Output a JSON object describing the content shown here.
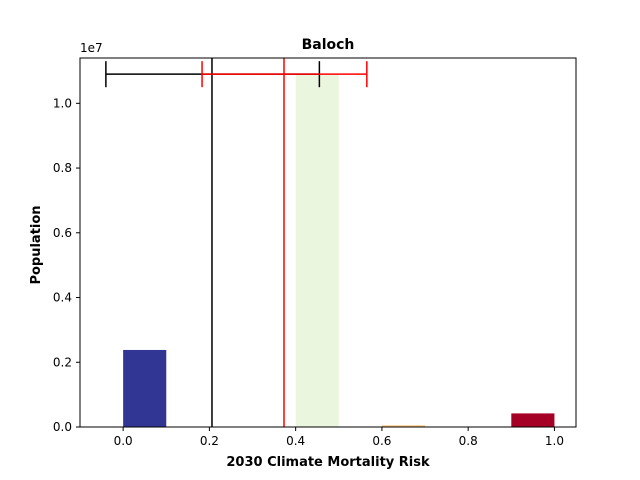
{
  "chart_data": {
    "type": "bar",
    "title": "Baloch",
    "xlabel": "2030 Climate Mortality Risk",
    "ylabel": "Population",
    "offset_text": "1e7",
    "xlim": [
      -0.1,
      1.05
    ],
    "ylim": [
      0,
      1.14
    ],
    "xticks": [
      0.0,
      0.2,
      0.4,
      0.6,
      0.8,
      1.0
    ],
    "xtick_labels": [
      "0.0",
      "0.2",
      "0.4",
      "0.6",
      "0.8",
      "1.0"
    ],
    "yticks": [
      0.0,
      0.2,
      0.4,
      0.6,
      0.8,
      1.0
    ],
    "ytick_labels": [
      "0.0",
      "0.2",
      "0.4",
      "0.6",
      "0.8",
      "1.0"
    ],
    "bar_width": 0.1,
    "bars": [
      {
        "x": 0.0,
        "value": 0.238,
        "color": "#313695"
      },
      {
        "x": 0.4,
        "value": 1.09,
        "color": "#ebf6de"
      },
      {
        "x": 0.6,
        "value": 0.005,
        "color": "#fdbf6f"
      },
      {
        "x": 0.9,
        "value": 0.042,
        "color": "#a50026"
      }
    ],
    "reference_lines": [
      {
        "name": "black",
        "x": 0.206,
        "color": "#000000",
        "err_low": -0.04,
        "err_high": 0.455,
        "err_y": 1.09
      },
      {
        "name": "red",
        "x": 0.373,
        "color": "#ff0000",
        "err_low": 0.183,
        "err_high": 0.565,
        "err_y": 1.09
      }
    ]
  }
}
